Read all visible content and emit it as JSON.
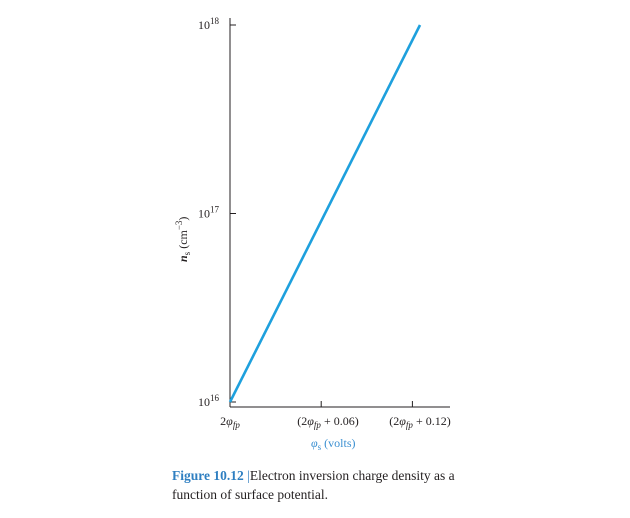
{
  "chart_data": {
    "type": "line",
    "y_scale": "log",
    "ylim": [
      1e+16,
      1e+18
    ],
    "xlabel": "φs (volts)",
    "ylabel": "ns (cm−3)",
    "y_ticks": [
      {
        "value": 1e+16,
        "base": "10",
        "exp": "16"
      },
      {
        "value": 1e+17,
        "base": "10",
        "exp": "17"
      },
      {
        "value": 1e+18,
        "base": "10",
        "exp": "18"
      }
    ],
    "x_ticks": [
      {
        "offset": 0,
        "pre": "2",
        "sym": "φ",
        "sub": "fp",
        "post": ""
      },
      {
        "offset": 0.06,
        "pre": "(2",
        "sym": "φ",
        "sub": "fp",
        "post": " + 0.06)"
      },
      {
        "offset": 0.12,
        "pre": "(2",
        "sym": "φ",
        "sub": "fp",
        "post": " + 0.12)"
      }
    ],
    "series": [
      {
        "x": [
          0,
          0.125
        ],
        "y": [
          1e+16,
          1e+18
        ],
        "color": "#1ea0dd"
      }
    ],
    "grid": false
  },
  "caption": {
    "number": "Figure 10.12",
    "separator": "|",
    "text": "Electron inversion charge density as a function of surface potential."
  },
  "axis": {
    "x_label_sym": "φ",
    "x_label_sub": "s",
    "x_label_units": " (volts)",
    "y_label_sym": "n",
    "y_label_sub": "s",
    "y_label_units": " (cm",
    "y_label_exp": "−3",
    "y_label_close": ")"
  }
}
